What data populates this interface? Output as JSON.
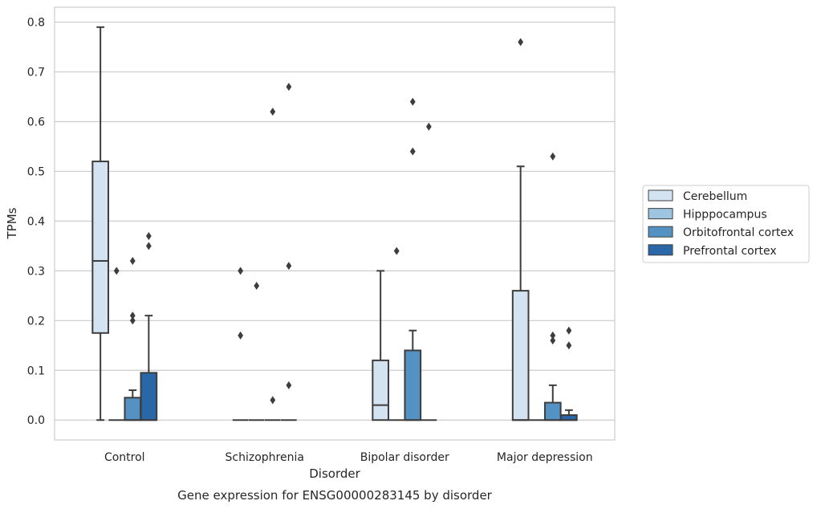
{
  "caption": "Gene expression for ENSG00000283145 by disorder",
  "chart_data": {
    "type": "box",
    "xlabel": "Disorder",
    "ylabel": "TPMs",
    "ylim": [
      -0.04,
      0.83
    ],
    "yticks": [
      0.0,
      0.1,
      0.2,
      0.3,
      0.4,
      0.5,
      0.6,
      0.7,
      0.8
    ],
    "ytick_labels": [
      "0.0",
      "0.1",
      "0.2",
      "0.3",
      "0.4",
      "0.5",
      "0.6",
      "0.7",
      "0.8"
    ],
    "grid": "horizontal",
    "legend_position": "right",
    "categories": [
      "Control",
      "Schizophrenia",
      "Bipolar disorder",
      "Major depression"
    ],
    "series": [
      {
        "name": "Cerebellum",
        "color": "#d4e3f2",
        "boxes": [
          {
            "whislo": 0.0,
            "q1": 0.175,
            "med": 0.32,
            "q3": 0.52,
            "whishi": 0.79,
            "fliers": []
          },
          {
            "whislo": 0.0,
            "q1": 0.0,
            "med": 0.0,
            "q3": 0.0,
            "whishi": 0.0,
            "fliers": [
              0.17,
              0.3
            ]
          },
          {
            "whislo": 0.0,
            "q1": 0.0,
            "med": 0.03,
            "q3": 0.12,
            "whishi": 0.3,
            "fliers": []
          },
          {
            "whislo": 0.0,
            "q1": 0.0,
            "med": 0.0,
            "q3": 0.26,
            "whishi": 0.51,
            "fliers": [
              0.76
            ]
          }
        ]
      },
      {
        "name": "Hipppocampus",
        "color": "#9dc4e0",
        "boxes": [
          {
            "whislo": 0.0,
            "q1": 0.0,
            "med": 0.0,
            "q3": 0.0,
            "whishi": 0.0,
            "fliers": [
              0.3
            ]
          },
          {
            "whislo": 0.0,
            "q1": 0.0,
            "med": 0.0,
            "q3": 0.0,
            "whishi": 0.0,
            "fliers": [
              0.27
            ]
          },
          {
            "whislo": 0.0,
            "q1": 0.0,
            "med": 0.0,
            "q3": 0.0,
            "whishi": 0.0,
            "fliers": [
              0.34
            ]
          },
          {
            "whislo": 0.0,
            "q1": 0.0,
            "med": 0.0,
            "q3": 0.0,
            "whishi": 0.0,
            "fliers": []
          }
        ]
      },
      {
        "name": "Orbitofrontal cortex",
        "color": "#5592c4",
        "boxes": [
          {
            "whislo": 0.0,
            "q1": 0.0,
            "med": 0.0,
            "q3": 0.045,
            "whishi": 0.06,
            "fliers": [
              0.2,
              0.21,
              0.32
            ]
          },
          {
            "whislo": 0.0,
            "q1": 0.0,
            "med": 0.0,
            "q3": 0.0,
            "whishi": 0.0,
            "fliers": [
              0.04,
              0.62
            ]
          },
          {
            "whislo": 0.0,
            "q1": 0.0,
            "med": 0.0,
            "q3": 0.14,
            "whishi": 0.18,
            "fliers": [
              0.54,
              0.64
            ]
          },
          {
            "whislo": 0.0,
            "q1": 0.0,
            "med": 0.0,
            "q3": 0.035,
            "whishi": 0.07,
            "fliers": [
              0.16,
              0.17,
              0.53
            ]
          }
        ]
      },
      {
        "name": "Prefrontal cortex",
        "color": "#2a67a8",
        "boxes": [
          {
            "whislo": 0.0,
            "q1": 0.0,
            "med": 0.0,
            "q3": 0.095,
            "whishi": 0.21,
            "fliers": [
              0.35,
              0.37
            ]
          },
          {
            "whislo": 0.0,
            "q1": 0.0,
            "med": 0.0,
            "q3": 0.0,
            "whishi": 0.0,
            "fliers": [
              0.07,
              0.31,
              0.67
            ]
          },
          {
            "whislo": 0.0,
            "q1": 0.0,
            "med": 0.0,
            "q3": 0.0,
            "whishi": 0.0,
            "fliers": [
              0.59
            ]
          },
          {
            "whislo": 0.0,
            "q1": 0.0,
            "med": 0.0,
            "q3": 0.01,
            "whishi": 0.02,
            "fliers": [
              0.15,
              0.18
            ]
          }
        ]
      }
    ]
  }
}
